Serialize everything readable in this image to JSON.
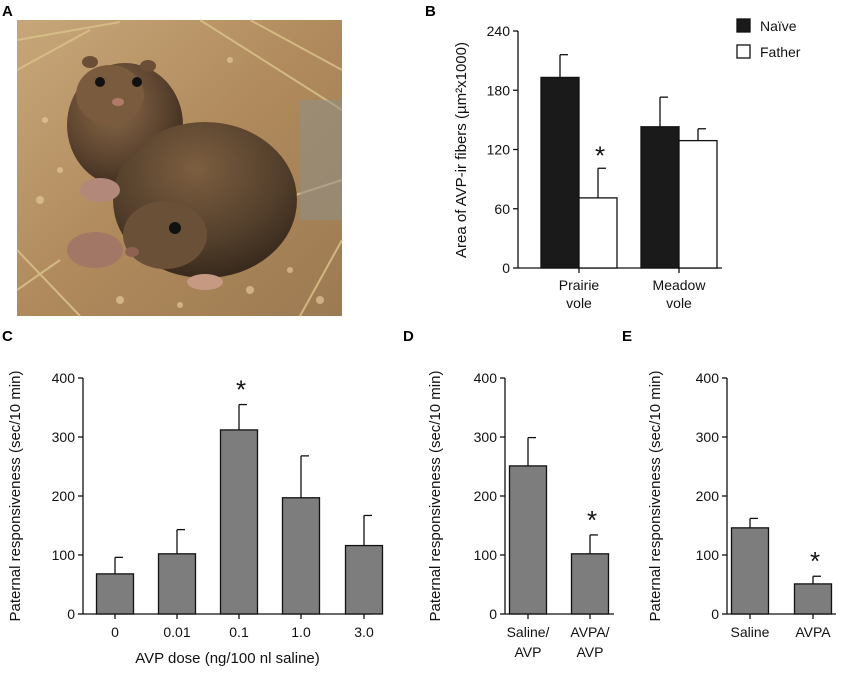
{
  "panel_labels": {
    "a": "A",
    "b": "B",
    "c": "C",
    "d": "D",
    "e": "E"
  },
  "photo": {
    "description_icon": "vole-photo-icon"
  },
  "colors": {
    "naive": "#1a1a1a",
    "father": "#ffffff",
    "treatment": "#7d7d7d",
    "axis": "#111111"
  },
  "chart_data": [
    {
      "id": "B",
      "type": "bar",
      "title": "",
      "ylabel": "Area of AVP-ir fibers (µm²x1000)",
      "ylim": [
        0,
        240
      ],
      "yticks": [
        "0",
        "60",
        "120",
        "180",
        "240"
      ],
      "categories": [
        "Prairie vole",
        "Meadow vole"
      ],
      "category_lines": [
        [
          "Prairie",
          "vole"
        ],
        [
          "Meadow",
          "vole"
        ]
      ],
      "series": [
        {
          "name": "Naïve",
          "values": [
            193,
            143
          ],
          "errors": [
            23,
            30
          ]
        },
        {
          "name": "Father",
          "values": [
            71,
            129
          ],
          "errors": [
            30,
            12
          ]
        }
      ],
      "legend": [
        "Naïve",
        "Father"
      ],
      "legend_position": "top-right",
      "annotations": [
        {
          "text": "*",
          "category": 0,
          "series": 1
        }
      ]
    },
    {
      "id": "C",
      "type": "bar",
      "ylabel": "Paternal responsiveness (sec/10 min)",
      "xlabel": "AVP  dose (ng/100 nl saline)",
      "ylim": [
        0,
        400
      ],
      "yticks": [
        "0",
        "100",
        "200",
        "300",
        "400"
      ],
      "categories": [
        "0",
        "0.01",
        "0.1",
        "1.0",
        "3.0"
      ],
      "values": [
        68,
        102,
        312,
        197,
        116
      ],
      "errors": [
        28,
        41,
        43,
        71,
        51
      ],
      "annotations": [
        {
          "text": "*",
          "category": 2
        }
      ]
    },
    {
      "id": "D",
      "type": "bar",
      "ylabel": "Paternal responsiveness (sec/10 min)",
      "ylim": [
        0,
        400
      ],
      "yticks": [
        "0",
        "100",
        "200",
        "300",
        "400"
      ],
      "categories": [
        "Saline/AVP",
        "AVPA/AVP"
      ],
      "category_lines": [
        [
          "Saline/",
          "AVP"
        ],
        [
          "AVPA/",
          "AVP"
        ]
      ],
      "values": [
        251,
        102
      ],
      "errors": [
        48,
        32
      ],
      "annotations": [
        {
          "text": "*",
          "category": 1
        }
      ]
    },
    {
      "id": "E",
      "type": "bar",
      "ylabel": "Paternal responsiveness (sec/10 min)",
      "ylim": [
        0,
        400
      ],
      "yticks": [
        "0",
        "100",
        "200",
        "300",
        "400"
      ],
      "categories": [
        "Saline",
        "AVPA"
      ],
      "values": [
        146,
        51
      ],
      "errors": [
        16,
        13
      ],
      "annotations": [
        {
          "text": "*",
          "category": 1
        }
      ]
    }
  ]
}
